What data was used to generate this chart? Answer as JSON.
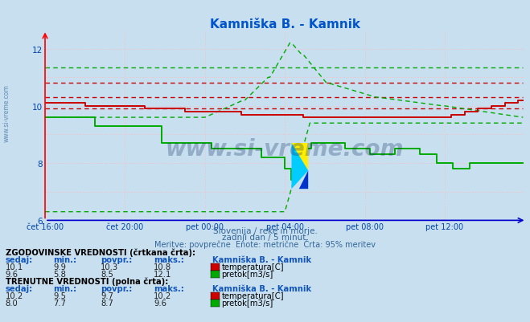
{
  "title": "Kamniška B. - Kamnik",
  "title_color": "#0055cc",
  "bg_color": "#c8dff0",
  "plot_bg_color": "#c8dff0",
  "xlim": [
    0,
    288
  ],
  "ylim": [
    6.0,
    12.6
  ],
  "yticks": [
    6,
    8,
    10,
    12
  ],
  "xtick_labels": [
    "čet 16:00",
    "čet 20:00",
    "pet 00:00",
    "pet 04:00",
    "pet 08:00",
    "pet 12:00"
  ],
  "xtick_positions": [
    0,
    48,
    96,
    144,
    192,
    240
  ],
  "temp_solid_color": "#cc0000",
  "temp_dashed_color": "#cc0000",
  "flow_solid_color": "#00aa00",
  "flow_dashed_color": "#00aa00",
  "watermark_text": "www.si-vreme.com",
  "subtitle1": "Slovenija / reke in morje.",
  "subtitle2": "zadnji dan / 5 minut.",
  "subtitle3": "Meritve: povprečne  Enote: metrične  Črta: 95% meritev",
  "subtitle_color": "#336699",
  "table_header1": "ZGODOVINSKE VREDNOSTI (črtkana črta):",
  "table_header2": "TRENUTNE VREDNOSTI (polna črta):",
  "col_label_sedaj": "sedaj:",
  "col_label_min": "min.:",
  "col_label_povpr": "povpr.:",
  "col_label_maks": "maks.:",
  "station_name": "Kamniška B. - Kamnik",
  "temp_label": "temperatura[C]",
  "flow_label": "pretok[m3/s]",
  "temp_box_color": "#cc0000",
  "flow_box_color": "#00aa00",
  "hist_temp": [
    10.1,
    9.9,
    10.3,
    10.8
  ],
  "hist_flow": [
    9.6,
    5.8,
    8.5,
    12.1
  ],
  "curr_temp": [
    10.2,
    9.5,
    9.7,
    10.2
  ],
  "curr_flow": [
    8.0,
    7.7,
    8.7,
    9.6
  ],
  "temp_dashed_avg": 10.3,
  "temp_dashed_max": 10.8,
  "temp_dashed_min": 9.9,
  "flow_dashed_max_line": 11.35,
  "flow_dashed_avg_start": 9.6,
  "flow_dashed_min_start": 6.3,
  "flow_dashed_min_end": 9.4
}
